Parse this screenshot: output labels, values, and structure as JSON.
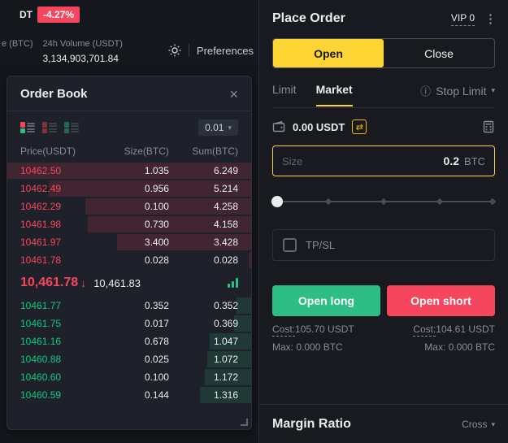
{
  "icons": {
    "close": "×",
    "menu": "⋮",
    "caret_down": "▾",
    "info": "ⓘ",
    "swap": "⇄"
  },
  "ticker": {
    "pair_fragment": "DT",
    "change": "-4.27%",
    "col1_label": "e (BTC)",
    "col2_label": "24h Volume (USDT)",
    "col2_value": "3,134,903,701.84",
    "preferences": "Preferences"
  },
  "order_book": {
    "title": "Order Book",
    "precision": "0.01",
    "columns": [
      "Price(USDT)",
      "Size(BTC)",
      "Sum(BTC)"
    ],
    "asks": [
      {
        "price": "10462.50",
        "size": "1.035",
        "sum": "6.249",
        "depth": 100
      },
      {
        "price": "10462.49",
        "size": "0.956",
        "sum": "5.214",
        "depth": 83
      },
      {
        "price": "10462.29",
        "size": "0.100",
        "sum": "4.258",
        "depth": 68
      },
      {
        "price": "10461.98",
        "size": "0.730",
        "sum": "4.158",
        "depth": 67
      },
      {
        "price": "10461.97",
        "size": "3.400",
        "sum": "3.428",
        "depth": 55
      },
      {
        "price": "10461.78",
        "size": "0.028",
        "sum": "0.028",
        "depth": 1
      }
    ],
    "last_price": "10,461.78",
    "direction": "↓",
    "mark_price": "10,461.83",
    "bids": [
      {
        "price": "10461.77",
        "size": "0.352",
        "sum": "0.352",
        "depth": 6
      },
      {
        "price": "10461.75",
        "size": "0.017",
        "sum": "0.369",
        "depth": 7
      },
      {
        "price": "10461.16",
        "size": "0.678",
        "sum": "1.047",
        "depth": 17
      },
      {
        "price": "10460.88",
        "size": "0.025",
        "sum": "1.072",
        "depth": 18
      },
      {
        "price": "10460.60",
        "size": "0.100",
        "sum": "1.172",
        "depth": 19
      },
      {
        "price": "10460.59",
        "size": "0.144",
        "sum": "1.316",
        "depth": 21
      }
    ]
  },
  "place_order": {
    "title": "Place Order",
    "vip": "VIP 0",
    "open_tab": "Open",
    "close_tab": "Close",
    "limit_tab": "Limit",
    "market_tab": "Market",
    "stop_limit_tab": "Stop Limit",
    "balance": "0.00 USDT",
    "size_placeholder": "Size",
    "size_value": "0.2",
    "size_unit": "BTC",
    "slider_percent": 0,
    "tpsl": "TP/SL",
    "open_long": "Open long",
    "open_short": "Open short",
    "cost_label": "Cost:",
    "cost_long": "105.70 USDT",
    "cost_short": "104.61 USDT",
    "max_long": "Max: 0.000 BTC",
    "max_short": "Max: 0.000 BTC"
  },
  "margin_ratio": {
    "title": "Margin Ratio",
    "mode": "Cross"
  }
}
